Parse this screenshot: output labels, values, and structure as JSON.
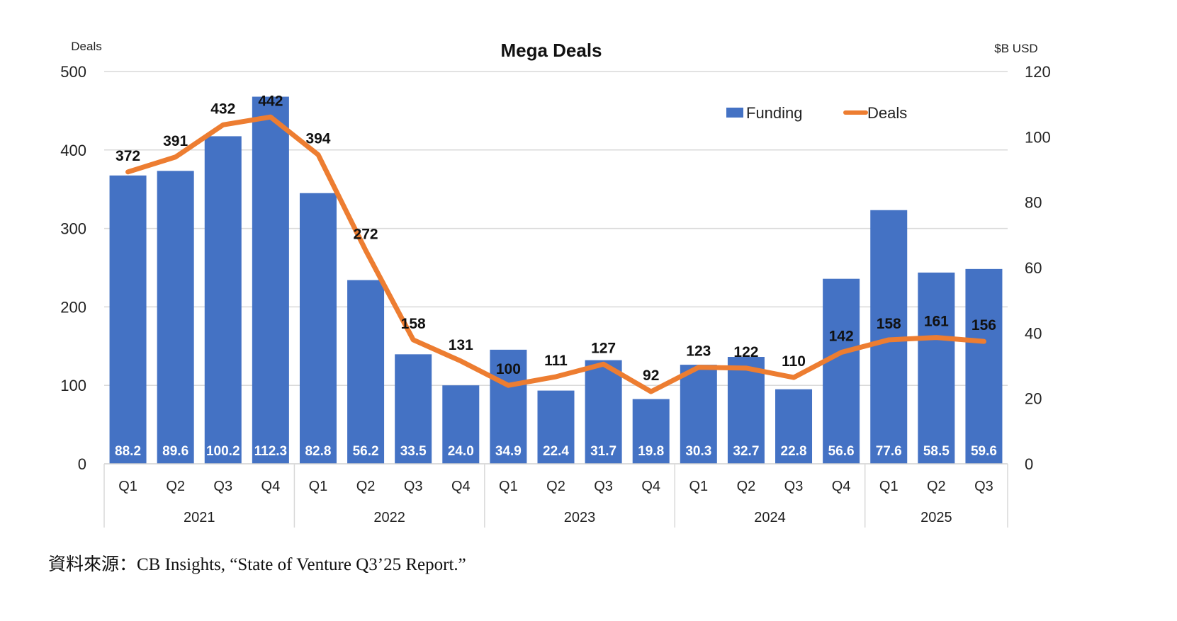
{
  "chart_data": {
    "type": "bar",
    "title": "Mega Deals",
    "ylabel_left": "Deals",
    "ylabel_right": "$B USD",
    "ylim_left": [
      0,
      500
    ],
    "ylim_right": [
      0,
      120
    ],
    "yticks_left": [
      0,
      100,
      200,
      300,
      400,
      500
    ],
    "yticks_right": [
      0,
      20,
      40,
      60,
      80,
      100,
      120
    ],
    "grid": true,
    "legend_placement": "top-right",
    "categories": [
      "Q1",
      "Q2",
      "Q3",
      "Q4",
      "Q1",
      "Q2",
      "Q3",
      "Q4",
      "Q1",
      "Q2",
      "Q3",
      "Q4",
      "Q1",
      "Q2",
      "Q3",
      "Q4",
      "Q1",
      "Q2",
      "Q3"
    ],
    "years": [
      {
        "label": "2021",
        "count": 4
      },
      {
        "label": "2022",
        "count": 4
      },
      {
        "label": "2023",
        "count": 4
      },
      {
        "label": "2024",
        "count": 4
      },
      {
        "label": "2025",
        "count": 3
      }
    ],
    "series": [
      {
        "name": "Funding",
        "type": "bar",
        "axis": "right",
        "color": "#4472C4",
        "values": [
          88.2,
          89.6,
          100.2,
          112.3,
          82.8,
          56.2,
          33.5,
          24.0,
          34.9,
          22.4,
          31.7,
          19.8,
          30.3,
          32.7,
          22.8,
          56.6,
          77.6,
          58.5,
          59.6
        ],
        "labels": [
          "88.2",
          "89.6",
          "100.2",
          "112.3",
          "82.8",
          "56.2",
          "33.5",
          "24.0",
          "34.9",
          "22.4",
          "31.7",
          "19.8",
          "30.3",
          "32.7",
          "22.8",
          "56.6",
          "77.6",
          "58.5",
          "59.6"
        ]
      },
      {
        "name": "Deals",
        "type": "line",
        "axis": "left",
        "color": "#ED7D31",
        "values": [
          372,
          391,
          432,
          442,
          394,
          272,
          158,
          131,
          100,
          111,
          127,
          92,
          123,
          122,
          110,
          142,
          158,
          161,
          156
        ]
      }
    ],
    "source": "資料來源：CB Insights, “State of Venture Q3’25 Report.”"
  }
}
